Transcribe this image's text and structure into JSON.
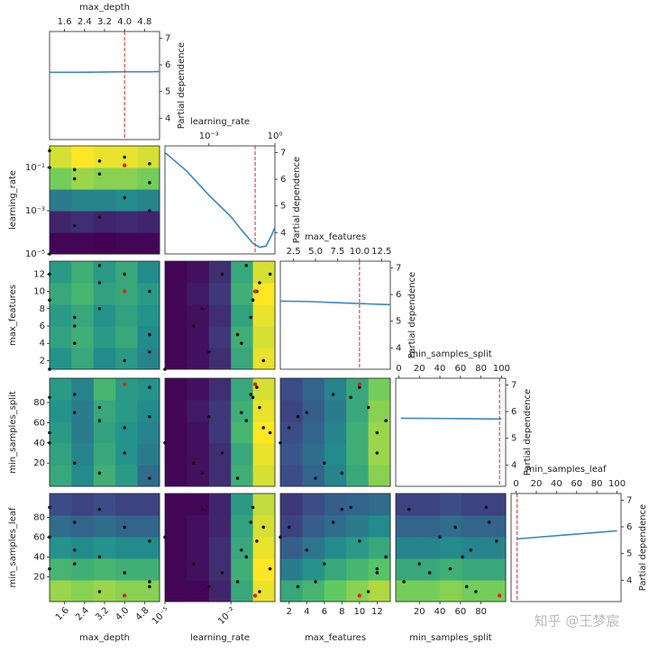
{
  "chart_data": {
    "type": "partial_dependence_matrix",
    "y_label": "Partial dependence",
    "pd_lim": [
      3.2,
      7.25
    ],
    "pd_ticks": [
      4,
      5,
      6,
      7
    ],
    "line_color": "#3b88c4",
    "point_color": "#111111",
    "best_color": "#d62728",
    "watermark": "知乎 @王梦宸",
    "dimensions": [
      {
        "name": "max_depth",
        "lim": [
          1,
          5.4
        ],
        "log": false,
        "diag_ticks": [
          1.6,
          2.4,
          3.2,
          {
            "value": 4,
            "label": "4.0"
          },
          4.8
        ],
        "x_ticks": [
          1.6,
          2.4,
          3.2,
          {
            "value": 4,
            "label": "4.0"
          },
          4.8
        ]
      },
      {
        "name": "learning_rate",
        "lim": [
          1e-05,
          1
        ],
        "log": true,
        "diag_ticks": [
          {
            "value": 0.001,
            "label": "10⁻³"
          },
          {
            "value": 1,
            "label": "10⁰"
          }
        ],
        "x_ticks": [
          {
            "value": 1e-05,
            "label": "10⁻⁵"
          },
          {
            "value": 0.01,
            "label": "10⁻²"
          }
        ],
        "y_ticks": [
          {
            "value": 0.1,
            "label": "10⁻¹"
          },
          {
            "value": 0.001,
            "label": "10⁻³"
          },
          {
            "value": 1e-05,
            "label": "10⁻⁵"
          }
        ]
      },
      {
        "name": "max_features",
        "lim": [
          1,
          13.5
        ],
        "log": false,
        "diag_ticks": [
          2.5,
          {
            "value": 5,
            "label": "5.0"
          },
          7.5,
          {
            "value": 10,
            "label": "10.0"
          },
          12.5
        ],
        "x_ticks": [
          2,
          4,
          6,
          8,
          10,
          12
        ],
        "y_ticks": [
          2,
          4,
          6,
          8,
          10,
          12
        ]
      },
      {
        "name": "min_samples_split",
        "lim": [
          -3,
          104
        ],
        "log": false,
        "diag_ticks": [
          0,
          20,
          40,
          60,
          80,
          100
        ],
        "x_ticks": [
          20,
          40,
          60,
          80
        ],
        "y_ticks": [
          20,
          40,
          60,
          80
        ]
      },
      {
        "name": "min_samples_leaf",
        "lim": [
          -5,
          104
        ],
        "log": false,
        "diag_ticks": [
          0,
          20,
          40,
          60,
          80,
          100
        ],
        "y_ticks": [
          20,
          40,
          60,
          80
        ]
      }
    ],
    "diagonal": [
      {
        "x": [
          1,
          2,
          3,
          4,
          5,
          5.4
        ],
        "values": [
          5.72,
          5.72,
          5.73,
          5.74,
          5.74,
          5.75
        ]
      },
      {
        "x": [
          1e-05,
          0.0001,
          0.001,
          0.01,
          0.03,
          0.1,
          0.2,
          0.4,
          0.7,
          1
        ],
        "values": [
          7.0,
          6.3,
          5.4,
          4.6,
          4.1,
          3.6,
          3.45,
          3.5,
          3.9,
          4.2
        ]
      },
      {
        "x": [
          1,
          4,
          7,
          10,
          13.5
        ],
        "values": [
          5.75,
          5.74,
          5.7,
          5.66,
          5.62
        ]
      },
      {
        "x": [
          2,
          50,
          100
        ],
        "values": [
          5.75,
          5.74,
          5.72
        ]
      },
      {
        "x": [
          1,
          50,
          100
        ],
        "values": [
          5.55,
          5.7,
          5.85
        ]
      }
    ],
    "contours": [
      {
        "z": [
          [
            6.9,
            6.9,
            6.95,
            6.9,
            6.9
          ],
          [
            6.6,
            6.5,
            6.6,
            6.55,
            6.6
          ],
          [
            5.6,
            5.5,
            5.5,
            5.4,
            5.5
          ],
          [
            4.4,
            4.2,
            4.3,
            4.3,
            4.4
          ],
          [
            3.9,
            3.7,
            3.8,
            3.8,
            3.9
          ]
        ]
      },
      {
        "z": [
          [
            5.3,
            5.0,
            5.4,
            5.2,
            5.5
          ],
          [
            5.1,
            4.9,
            5.2,
            5.0,
            5.4
          ],
          [
            5.2,
            5.0,
            5.3,
            5.1,
            5.3
          ],
          [
            5.0,
            4.8,
            5.1,
            5.0,
            5.2
          ],
          [
            5.2,
            4.9,
            5.2,
            5.0,
            5.4
          ]
        ]
      },
      {
        "z": [
          [
            6.9,
            6.8,
            6.5,
            5.0,
            3.8
          ],
          [
            6.9,
            6.8,
            6.4,
            4.9,
            3.9
          ],
          [
            6.9,
            6.8,
            6.5,
            5.1,
            3.8
          ],
          [
            6.9,
            6.7,
            6.4,
            4.9,
            3.7
          ],
          [
            6.9,
            6.8,
            6.5,
            5.0,
            3.9
          ]
        ]
      },
      {
        "z": [
          [
            5.0,
            5.4,
            4.9,
            5.2,
            5.8
          ],
          [
            5.1,
            5.5,
            5.0,
            5.3,
            5.6
          ],
          [
            5.2,
            5.6,
            5.1,
            5.3,
            5.5
          ],
          [
            5.3,
            5.6,
            5.0,
            5.2,
            5.4
          ],
          [
            5.2,
            5.5,
            4.8,
            5.2,
            5.3
          ]
        ]
      },
      {
        "z": [
          [
            6.9,
            6.8,
            6.5,
            4.9,
            3.9
          ],
          [
            6.9,
            6.8,
            6.5,
            5.0,
            3.8
          ],
          [
            6.9,
            6.8,
            6.4,
            4.8,
            3.7
          ],
          [
            6.9,
            6.7,
            6.4,
            4.9,
            3.8
          ],
          [
            6.9,
            6.8,
            6.5,
            5.0,
            3.9
          ]
        ]
      },
      {
        "z": [
          [
            6.2,
            5.9,
            5.5,
            5.0,
            4.3
          ],
          [
            6.1,
            5.8,
            5.4,
            4.9,
            4.2
          ],
          [
            6.2,
            5.9,
            5.5,
            4.9,
            4.2
          ],
          [
            6.3,
            6.0,
            5.6,
            5.0,
            4.3
          ],
          [
            6.2,
            5.9,
            5.5,
            5.0,
            4.4
          ]
        ]
      },
      {
        "z": [
          [
            4.2,
            4.3,
            4.2,
            4.3,
            4.3
          ],
          [
            4.8,
            4.9,
            4.8,
            4.9,
            4.9
          ],
          [
            5.3,
            5.4,
            5.3,
            5.4,
            5.4
          ],
          [
            5.8,
            5.9,
            5.8,
            5.9,
            5.9
          ],
          [
            6.2,
            6.3,
            6.2,
            6.3,
            6.3
          ]
        ]
      },
      {
        "z": [
          [
            6.9,
            6.9,
            6.6,
            5.0,
            3.8
          ],
          [
            6.9,
            6.8,
            6.5,
            4.9,
            3.7
          ],
          [
            6.9,
            6.8,
            6.5,
            5.0,
            3.8
          ],
          [
            6.9,
            6.8,
            6.6,
            5.1,
            3.9
          ],
          [
            6.9,
            6.9,
            6.6,
            5.2,
            4.0
          ]
        ]
      },
      {
        "z": [
          [
            5.0,
            4.8,
            4.5,
            4.3,
            4.1
          ],
          [
            5.6,
            5.3,
            5.0,
            4.8,
            4.6
          ],
          [
            6.0,
            5.7,
            5.4,
            5.2,
            5.0
          ],
          [
            6.3,
            6.0,
            5.8,
            5.6,
            5.4
          ],
          [
            6.4,
            6.2,
            6.0,
            5.9,
            5.8
          ]
        ]
      },
      {
        "z": [
          [
            4.4,
            4.4,
            4.3,
            4.4,
            4.4
          ],
          [
            5.0,
            5.0,
            4.9,
            5.0,
            5.0
          ],
          [
            5.5,
            5.5,
            5.4,
            5.5,
            5.5
          ],
          [
            5.9,
            5.9,
            5.8,
            5.9,
            5.9
          ],
          [
            6.3,
            6.3,
            6.2,
            6.3,
            6.3
          ]
        ]
      }
    ],
    "samples": [
      [
        1,
        0.1,
        9,
        85,
        90
      ],
      [
        1,
        1e-05,
        1,
        40,
        60
      ],
      [
        2,
        0.03,
        4,
        70,
        47
      ],
      [
        2,
        0.0002,
        6,
        20,
        33
      ],
      [
        3,
        0.2,
        11,
        75,
        5
      ],
      [
        3,
        0.05,
        13,
        62,
        40
      ],
      [
        3,
        0.0005,
        8,
        10,
        88
      ],
      [
        4,
        0.3,
        2,
        55,
        70
      ],
      [
        4,
        0.004,
        12,
        30,
        24
      ],
      [
        5,
        0.15,
        10,
        95,
        56
      ],
      [
        5,
        0.02,
        5,
        5,
        15
      ],
      [
        1,
        0.6,
        12,
        50,
        28
      ],
      [
        2,
        0.08,
        7,
        88,
        75
      ],
      [
        5,
        0.001,
        3,
        66,
        10
      ]
    ],
    "best": [
      4,
      0.126,
      10,
      98,
      1
    ]
  }
}
